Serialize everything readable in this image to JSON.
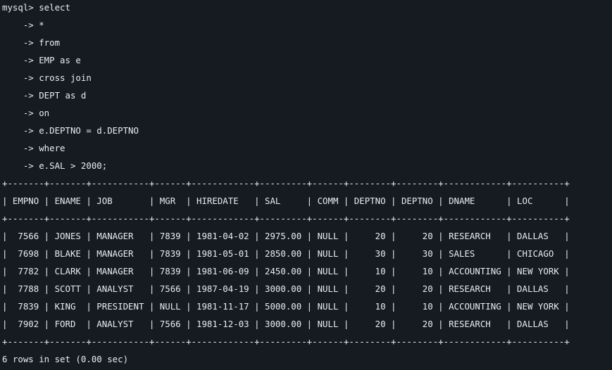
{
  "terminal": {
    "query_lines": [
      "mysql> select",
      "    -> *",
      "    -> from",
      "    -> EMP as e",
      "    -> cross join",
      "    -> DEPT as d",
      "    -> on",
      "    -> e.DEPTNO = d.DEPTNO",
      "    -> where",
      "    -> e.SAL > 2000;"
    ],
    "table": {
      "border": "+-------+-------+-----------+------+------------+---------+------+--------+--------+------------+----------+",
      "header": "| EMPNO | ENAME | JOB       | MGR  | HIREDATE   | SAL     | COMM | DEPTNO | DEPTNO | DNAME      | LOC      |",
      "rows": [
        "|  7566 | JONES | MANAGER   | 7839 | 1981-04-02 | 2975.00 | NULL |     20 |     20 | RESEARCH   | DALLAS   |",
        "|  7698 | BLAKE | MANAGER   | 7839 | 1981-05-01 | 2850.00 | NULL |     30 |     30 | SALES      | CHICAGO  |",
        "|  7782 | CLARK | MANAGER   | 7839 | 1981-06-09 | 2450.00 | NULL |     10 |     10 | ACCOUNTING | NEW YORK |",
        "|  7788 | SCOTT | ANALYST   | 7566 | 1987-04-19 | 3000.00 | NULL |     20 |     20 | RESEARCH   | DALLAS   |",
        "|  7839 | KING  | PRESIDENT | NULL | 1981-11-17 | 5000.00 | NULL |     10 |     10 | ACCOUNTING | NEW YORK |",
        "|  7902 | FORD  | ANALYST   | 7566 | 1981-12-03 | 3000.00 | NULL |     20 |     20 | RESEARCH   | DALLAS   |"
      ]
    },
    "result_summary": "6 rows in set (0.00 sec)"
  },
  "colors": {
    "background": "#161b22",
    "text": "#e6edf3"
  }
}
